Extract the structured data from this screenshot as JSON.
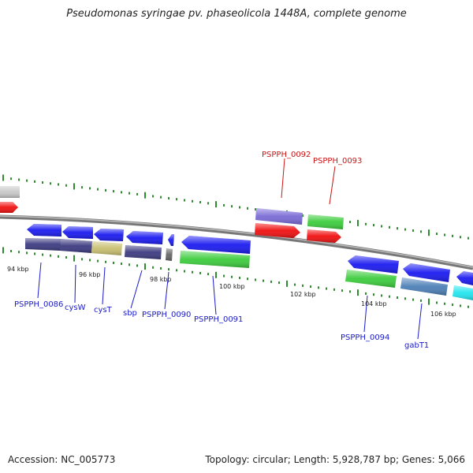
{
  "title": "Pseudomonas syringae pv. phaseolicola 1448A, complete genome",
  "accession": "Accession: NC_005773",
  "summary": "Topology: circular; Length: 5,928,787 bp; Genes: 5,066",
  "colors": {
    "blue": "#1a1af0",
    "red": "#f01010",
    "green": "#3ccc3c",
    "purple": "#3c3a80",
    "tan": "#c8bf70",
    "slate": "#4c7fb6",
    "lavender": "#7a6ad6",
    "cyan": "#22e5f0",
    "gray": "#c8c8c8",
    "dark": "#666666",
    "label_blue": "#1a1acc",
    "label_red": "#cc1414",
    "tick": "#2e8b2e",
    "backbone": "#888888"
  },
  "scale_labels": [
    "94 kbp",
    "96 kbp",
    "98 kbp",
    "100 kbp",
    "102 kbp",
    "104 kbp",
    "106 kbp"
  ],
  "gene_labels": {
    "blue": [
      "PSPPH_0086",
      "cysW",
      "cysT",
      "sbp",
      "PSPPH_0090",
      "PSPPH_0091",
      "PSPPH_0094",
      "gabT1"
    ],
    "red": [
      "PSPPH_0092",
      "PSPPH_0093"
    ]
  }
}
